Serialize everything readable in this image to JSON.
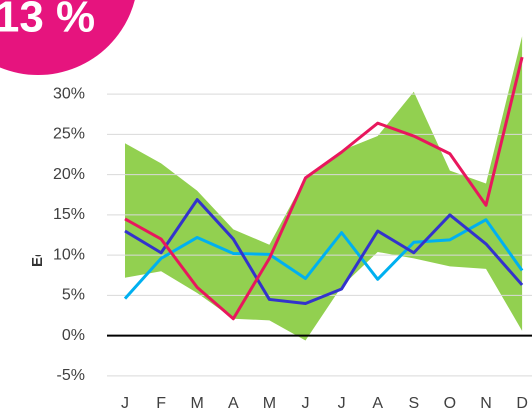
{
  "chart_data": {
    "type": "line",
    "badge": "13 %",
    "y_label": "Ecart relatif du cumul de l'E",
    "categories": [
      "J",
      "F",
      "M",
      "A",
      "M",
      "J",
      "J",
      "A",
      "S",
      "O",
      "N",
      "D"
    ],
    "ylim": [
      -7,
      41.7
    ],
    "yticks": [
      {
        "value": -5,
        "label": "-5%"
      },
      {
        "value": 0,
        "label": "0%"
      },
      {
        "value": 5,
        "label": "5%"
      },
      {
        "value": 10,
        "label": "10%"
      },
      {
        "value": 15,
        "label": "15%"
      },
      {
        "value": 20,
        "label": "20%"
      },
      {
        "value": 25,
        "label": "25%"
      },
      {
        "value": 30,
        "label": "30%"
      }
    ],
    "grid": true,
    "band": {
      "color": "#92d050",
      "upper": [
        23.9,
        21.4,
        18,
        13.2,
        11.3,
        19.6,
        23,
        24.8,
        30.3,
        20.5,
        18.9,
        37.2
      ],
      "lower": [
        7.2,
        8,
        5.3,
        2.1,
        1.9,
        -0.6,
        6.1,
        10.4,
        9.6,
        8.6,
        8.3,
        0.6
      ]
    },
    "series": [
      {
        "color": "#00b0f0",
        "values": [
          4.6,
          9.6,
          12.2,
          10.2,
          10.1,
          7.1,
          12.8,
          7,
          11.6,
          11.9,
          14.4,
          8.1
        ]
      },
      {
        "color": "#3333cc",
        "values": [
          13,
          10.3,
          16.9,
          12,
          4.5,
          4,
          5.8,
          13,
          10.3,
          15,
          11.4,
          6.3
        ]
      },
      {
        "color": "#e8175d",
        "values": [
          14.5,
          12,
          6,
          2.1,
          9.6,
          19.6,
          22.8,
          26.4,
          24.8,
          22.6,
          16.2,
          34.6
        ]
      }
    ]
  }
}
